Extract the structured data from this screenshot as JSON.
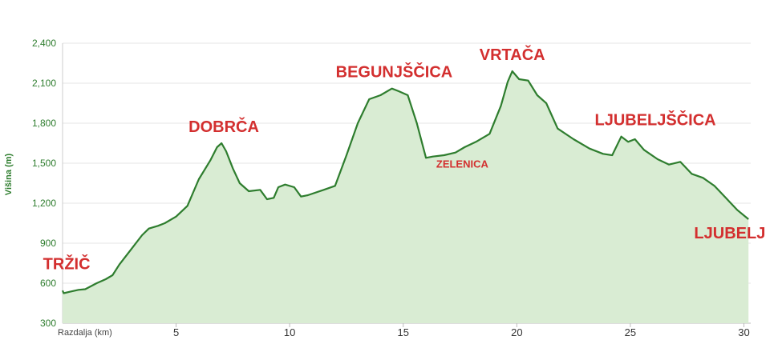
{
  "chart_data": {
    "type": "area",
    "xlabel": "Razdalja (km)",
    "ylabel": "Višina (m)",
    "xlim": [
      0,
      30.3
    ],
    "ylim": [
      300,
      2400
    ],
    "x_ticks": [
      5,
      10,
      15,
      20,
      25,
      30
    ],
    "y_ticks": [
      300,
      600,
      900,
      1200,
      1500,
      1800,
      2100,
      2400
    ],
    "y_tick_labels": [
      "300",
      "600",
      "900",
      "1,200",
      "1,500",
      "1,800",
      "2,100",
      "2,400"
    ],
    "grid": "horizontal",
    "line_color": "#2e7d2e",
    "fill_color": "#d9ecd3",
    "label_color": "#d32f2f",
    "series": [
      {
        "x": [
          0,
          0.05,
          0.3,
          0.7,
          1.0,
          1.5,
          1.9,
          2.2,
          2.5,
          3.0,
          3.5,
          3.8,
          4.2,
          4.5,
          5.0,
          5.5,
          6.0,
          6.5,
          6.8,
          7.0,
          7.2,
          7.5,
          7.8,
          8.2,
          8.7,
          9.0,
          9.3,
          9.5,
          9.8,
          10.2,
          10.5,
          10.8,
          11.5,
          12.0,
          12.5,
          13.0,
          13.5,
          14.0,
          14.5,
          14.8,
          15.2,
          15.6,
          16.0,
          16.3,
          16.8,
          17.3,
          17.7,
          18.2,
          18.8,
          19.3,
          19.6,
          19.8,
          20.1,
          20.5,
          20.9,
          21.3,
          21.8,
          22.5,
          23.2,
          23.8,
          24.2,
          24.6,
          24.9,
          25.2,
          25.6,
          26.2,
          26.7,
          27.2,
          27.7,
          28.2,
          28.7,
          29.2,
          29.7,
          30.2
        ],
        "y": [
          545,
          525,
          535,
          550,
          555,
          600,
          630,
          660,
          740,
          850,
          960,
          1010,
          1030,
          1050,
          1100,
          1180,
          1380,
          1520,
          1620,
          1650,
          1590,
          1460,
          1350,
          1290,
          1300,
          1230,
          1240,
          1320,
          1340,
          1320,
          1250,
          1260,
          1300,
          1330,
          1560,
          1800,
          1980,
          2010,
          2060,
          2040,
          2010,
          1800,
          1540,
          1550,
          1560,
          1580,
          1620,
          1660,
          1720,
          1930,
          2110,
          2190,
          2130,
          2120,
          2010,
          1950,
          1760,
          1680,
          1610,
          1570,
          1560,
          1700,
          1660,
          1680,
          1600,
          1530,
          1490,
          1510,
          1420,
          1390,
          1330,
          1240,
          1150,
          1080
        ]
      }
    ],
    "annotations": [
      {
        "text": "TRŽIČ",
        "x": 0.2,
        "y": 550
      },
      {
        "text": "DOBRČA",
        "x": 7.1,
        "y": 1650
      },
      {
        "text": "BEGUNJŠČICA",
        "x": 14.6,
        "y": 2060
      },
      {
        "text": "ZELENICA",
        "x": 17.6,
        "y": 1550
      },
      {
        "text": "VRTAČA",
        "x": 19.8,
        "y": 2190
      },
      {
        "text": "LJUBELJŠČICA",
        "x": 26.1,
        "y": 1700
      },
      {
        "text": "LJUBELJ",
        "x": 30.1,
        "y": 1080
      }
    ]
  }
}
